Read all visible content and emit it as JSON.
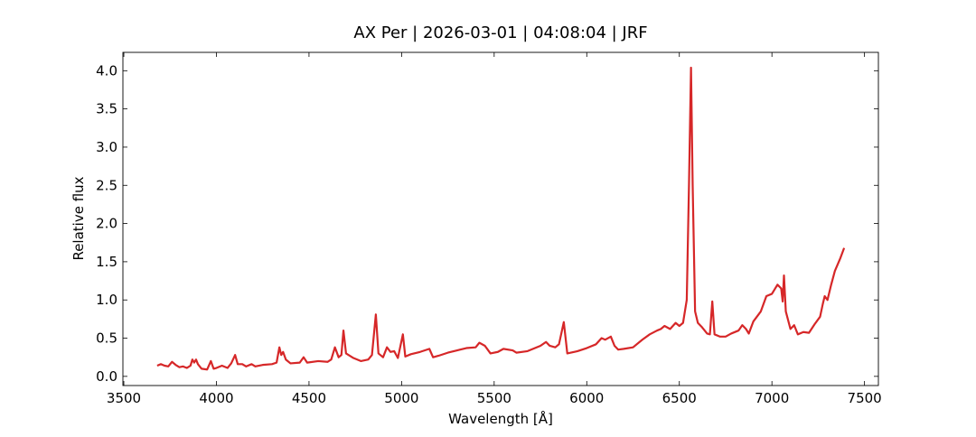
{
  "chart_data": {
    "type": "line",
    "title": "AX Per | 2026-03-01 | 04:08:04 | JRF",
    "x_label": "Wavelength [Å]",
    "y_label": "Relative flux",
    "xlim": [
      3495,
      7575
    ],
    "ylim": [
      -0.12,
      4.24
    ],
    "xticks": [
      3500,
      4000,
      4500,
      5000,
      5500,
      6000,
      6500,
      7000,
      7500
    ],
    "yticks": [
      {
        "value": 0,
        "label": "0.0"
      },
      0.5,
      {
        "value": 1,
        "label": "1.0"
      },
      1.5,
      {
        "value": 2,
        "label": "2.0"
      },
      2.5,
      {
        "value": 3,
        "label": "3.0"
      },
      3.5,
      {
        "value": 4,
        "label": "4.0"
      }
    ],
    "series": [
      {
        "color": "#d62728",
        "x": [
          3680,
          3700,
          3720,
          3740,
          3760,
          3780,
          3800,
          3820,
          3840,
          3860,
          3870,
          3880,
          3890,
          3900,
          3920,
          3950,
          3970,
          3985,
          4000,
          4030,
          4060,
          4080,
          4101,
          4115,
          4140,
          4160,
          4190,
          4210,
          4250,
          4300,
          4325,
          4340,
          4350,
          4360,
          4375,
          4400,
          4450,
          4471,
          4490,
          4550,
          4600,
          4620,
          4640,
          4660,
          4675,
          4686,
          4700,
          4740,
          4780,
          4820,
          4840,
          4861,
          4875,
          4900,
          4921,
          4940,
          4960,
          4980,
          5007,
          5020,
          5050,
          5100,
          5150,
          5170,
          5200,
          5250,
          5300,
          5350,
          5400,
          5420,
          5450,
          5480,
          5520,
          5550,
          5600,
          5620,
          5680,
          5750,
          5780,
          5800,
          5830,
          5850,
          5876,
          5895,
          5950,
          6000,
          6050,
          6080,
          6100,
          6130,
          6150,
          6170,
          6200,
          6250,
          6300,
          6340,
          6380,
          6400,
          6420,
          6450,
          6480,
          6500,
          6520,
          6540,
          6552,
          6563,
          6572,
          6585,
          6600,
          6620,
          6650,
          6665,
          6678,
          6690,
          6720,
          6750,
          6780,
          6820,
          6840,
          6860,
          6875,
          6900,
          6940,
          6970,
          7000,
          7030,
          7050,
          7058,
          7065,
          7075,
          7100,
          7120,
          7140,
          7170,
          7200,
          7230,
          7260,
          7275,
          7285,
          7300,
          7320,
          7340,
          7370,
          7390
        ],
        "values": [
          0.14,
          0.16,
          0.14,
          0.13,
          0.19,
          0.15,
          0.12,
          0.13,
          0.11,
          0.14,
          0.22,
          0.18,
          0.22,
          0.16,
          0.1,
          0.09,
          0.2,
          0.1,
          0.11,
          0.14,
          0.11,
          0.17,
          0.28,
          0.16,
          0.16,
          0.13,
          0.16,
          0.13,
          0.15,
          0.16,
          0.18,
          0.38,
          0.28,
          0.32,
          0.22,
          0.17,
          0.18,
          0.25,
          0.18,
          0.2,
          0.19,
          0.22,
          0.38,
          0.25,
          0.28,
          0.6,
          0.3,
          0.24,
          0.2,
          0.22,
          0.28,
          0.81,
          0.3,
          0.25,
          0.38,
          0.32,
          0.33,
          0.24,
          0.55,
          0.26,
          0.29,
          0.32,
          0.36,
          0.25,
          0.27,
          0.31,
          0.34,
          0.37,
          0.38,
          0.44,
          0.4,
          0.3,
          0.32,
          0.36,
          0.34,
          0.31,
          0.33,
          0.4,
          0.45,
          0.4,
          0.38,
          0.42,
          0.71,
          0.3,
          0.33,
          0.37,
          0.42,
          0.5,
          0.48,
          0.52,
          0.4,
          0.35,
          0.36,
          0.38,
          0.48,
          0.55,
          0.6,
          0.62,
          0.66,
          0.62,
          0.7,
          0.66,
          0.7,
          1.0,
          2.5,
          4.04,
          2.5,
          0.85,
          0.7,
          0.65,
          0.56,
          0.55,
          0.98,
          0.55,
          0.52,
          0.52,
          0.56,
          0.6,
          0.67,
          0.62,
          0.56,
          0.72,
          0.85,
          1.05,
          1.08,
          1.2,
          1.15,
          0.98,
          1.32,
          0.85,
          0.62,
          0.67,
          0.55,
          0.58,
          0.57,
          0.68,
          0.78,
          0.95,
          1.05,
          1.0,
          1.2,
          1.38,
          1.55,
          1.68
        ]
      }
    ]
  }
}
